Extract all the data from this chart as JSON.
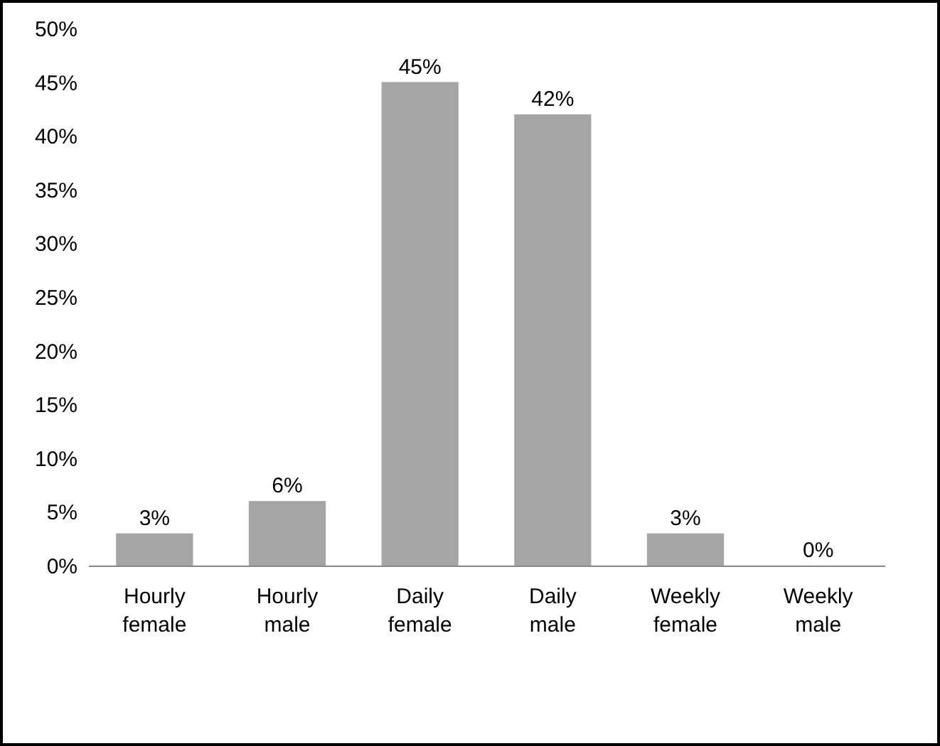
{
  "chart_data": {
    "type": "bar",
    "categories": [
      "Hourly female",
      "Hourly male",
      "Daily female",
      "Daily male",
      "Weekly female",
      "Weekly male"
    ],
    "values": [
      3,
      6,
      45,
      42,
      3,
      0
    ],
    "value_labels": [
      "3%",
      "6%",
      "45%",
      "42%",
      "3%",
      "0%"
    ],
    "color": "#a5a5a5",
    "ylim": [
      0,
      50
    ],
    "yticks": [
      {
        "value": 0,
        "label": "0%"
      },
      {
        "value": 5,
        "label": "5%"
      },
      {
        "value": 10,
        "label": "10%"
      },
      {
        "value": 15,
        "label": "15%"
      },
      {
        "value": 20,
        "label": "20%"
      },
      {
        "value": 25,
        "label": "25%"
      },
      {
        "value": 30,
        "label": "30%"
      },
      {
        "value": 35,
        "label": "35%"
      },
      {
        "value": 40,
        "label": "40%"
      },
      {
        "value": 45,
        "label": "45%"
      },
      {
        "value": 50,
        "label": "50%"
      }
    ],
    "grid": false
  }
}
